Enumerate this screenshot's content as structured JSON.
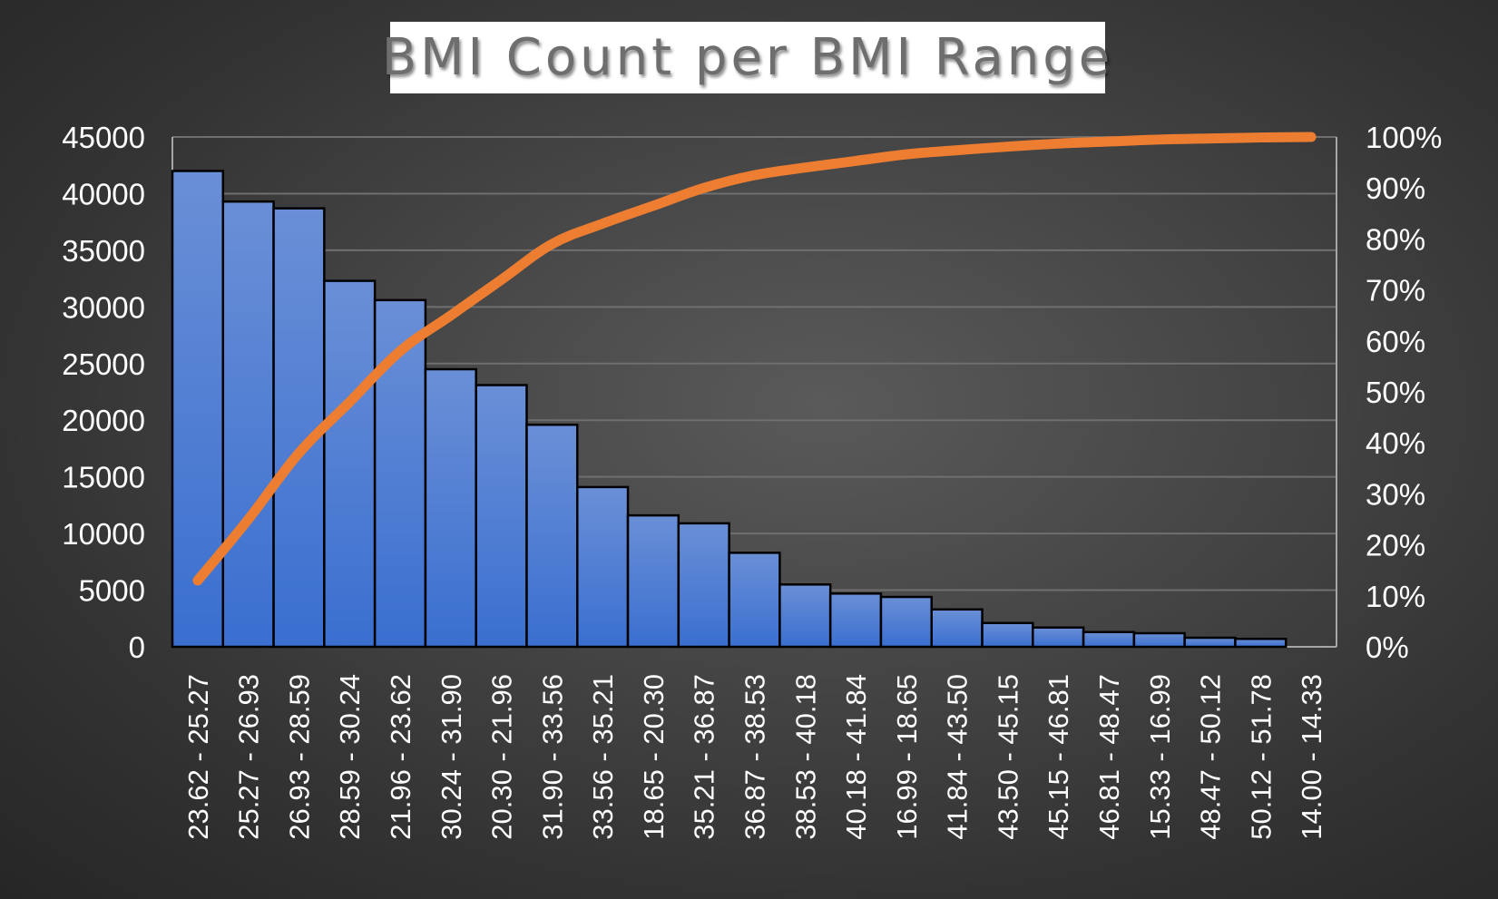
{
  "chart_data": {
    "type": "bar",
    "title": "BMI Count per BMI Range",
    "categories": [
      "23.62 - 25.27",
      "25.27 - 26.93",
      "26.93 - 28.59",
      "28.59 - 30.24",
      "21.96 - 23.62",
      "30.24 - 31.90",
      "20.30 - 21.96",
      "31.90 - 33.56",
      "33.56 - 35.21",
      "18.65 - 20.30",
      "35.21 - 36.87",
      "36.87 - 38.53",
      "38.53 - 40.18",
      "40.18 - 41.84",
      "16.99 - 18.65",
      "41.84 - 43.50",
      "43.50 - 45.15",
      "45.15 - 46.81",
      "46.81 - 48.47",
      "15.33 - 16.99",
      "48.47 - 50.12",
      "50.12 - 51.78",
      "14.00 - 14.33"
    ],
    "series": [
      {
        "type": "bar",
        "values": [
          42000,
          39300,
          38700,
          32300,
          30600,
          24500,
          23100,
          19600,
          14100,
          11600,
          10900,
          8300,
          5500,
          4700,
          4400,
          3300,
          2100,
          1700,
          1300,
          1200,
          800,
          700,
          0
        ]
      },
      {
        "type": "line",
        "axis": "right",
        "values": [
          0.13,
          0.25,
          0.38,
          0.48,
          0.58,
          0.65,
          0.72,
          0.79,
          0.83,
          0.865,
          0.9,
          0.925,
          0.94,
          0.953,
          0.966,
          0.974,
          0.981,
          0.987,
          0.991,
          0.995,
          0.997,
          0.999,
          1.0
        ]
      }
    ],
    "y_left": {
      "min": 0,
      "max": 45000,
      "ticks": [
        "0",
        "5000",
        "10000",
        "15000",
        "20000",
        "25000",
        "30000",
        "35000",
        "40000",
        "45000"
      ]
    },
    "y_right": {
      "min": 0,
      "max": 1,
      "ticks": [
        "0%",
        "10%",
        "20%",
        "30%",
        "40%",
        "50%",
        "60%",
        "70%",
        "80%",
        "90%",
        "100%"
      ]
    },
    "grid": true,
    "legend": "none",
    "colors": {
      "bar": "#3a6fd0",
      "bar_top": "#6a8fd6",
      "bar_edge": "#000000",
      "line": "#ed7d31",
      "grid": "#6f6f6f",
      "text": "#ffffff",
      "axis": "#a6a6a6"
    }
  }
}
